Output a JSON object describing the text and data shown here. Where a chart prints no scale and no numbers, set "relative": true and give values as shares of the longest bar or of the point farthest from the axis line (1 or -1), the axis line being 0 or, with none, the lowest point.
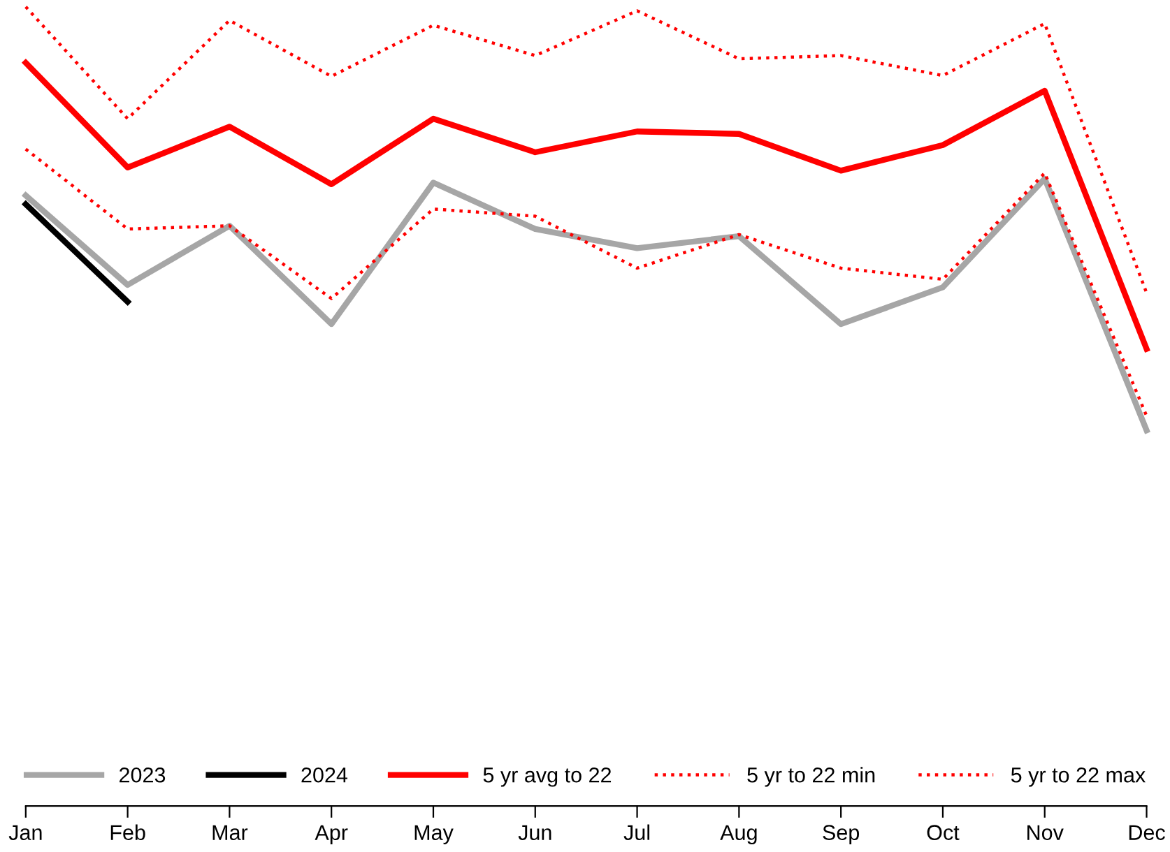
{
  "chart_data": {
    "type": "line",
    "relative": true,
    "categories": [
      "Jan",
      "Feb",
      "Mar",
      "Apr",
      "May",
      "Jun",
      "Jul",
      "Aug",
      "Sep",
      "Oct",
      "Nov",
      "Dec"
    ],
    "series": [
      {
        "name": "2023",
        "color": "#a6a6a6",
        "line_style": "solid",
        "values": [
          0.764,
          0.652,
          0.726,
          0.603,
          0.78,
          0.722,
          0.698,
          0.713,
          0.603,
          0.649,
          0.785,
          0.47
        ]
      },
      {
        "name": "2024",
        "color": "#000000",
        "line_style": "solid",
        "values": [
          0.753,
          0.631,
          null,
          null,
          null,
          null,
          null,
          null,
          null,
          null,
          null,
          null
        ]
      },
      {
        "name": "5 yr avg to 22",
        "color": "#ff0000",
        "line_style": "solid",
        "values": [
          0.93,
          0.799,
          0.85,
          0.778,
          0.86,
          0.818,
          0.844,
          0.841,
          0.795,
          0.827,
          0.895,
          0.572
        ]
      },
      {
        "name": "5 yr to 22 min",
        "color": "#ff0000",
        "line_style": "dotted",
        "values": [
          0.822,
          0.722,
          0.726,
          0.635,
          0.747,
          0.738,
          0.673,
          0.715,
          0.673,
          0.659,
          0.792,
          0.488
        ]
      },
      {
        "name": "5 yr to 22 max",
        "color": "#ff0000",
        "line_style": "dotted",
        "values": [
          1.0,
          0.86,
          0.983,
          0.913,
          0.977,
          0.939,
          0.995,
          0.935,
          0.939,
          0.914,
          0.979,
          0.642
        ]
      }
    ],
    "legend": "bottom",
    "grid": false,
    "marker": "none"
  }
}
